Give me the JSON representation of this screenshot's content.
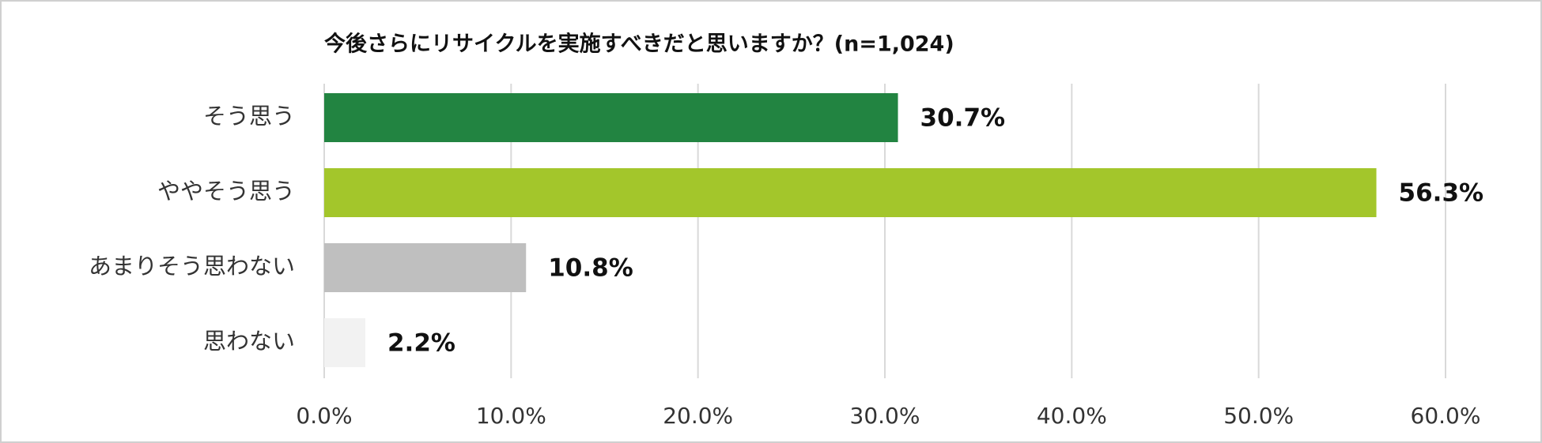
{
  "chart_data": {
    "type": "hbar",
    "title": "今後さらにリサイクルを実施すべきだと思いますか？(n=1,024)",
    "categories": [
      "そう思う",
      "ややそう思う",
      "あまりそう思わない",
      "思わない"
    ],
    "values": [
      30.7,
      56.3,
      10.8,
      2.2
    ],
    "value_labels": [
      "30.7%",
      "56.3%",
      "10.8%",
      "2.2%"
    ],
    "colors": [
      "#228441",
      "#a3c62b",
      "#bfbfbf",
      "#f2f2f2"
    ],
    "xlim": [
      0,
      60
    ],
    "xticks": [
      {
        "value": 0,
        "label": "0.0%"
      },
      {
        "value": 10,
        "label": "10.0%"
      },
      {
        "value": 20,
        "label": "20.0%"
      },
      {
        "value": 30,
        "label": "30.0%"
      },
      {
        "value": 40,
        "label": "40.0%"
      },
      {
        "value": 50,
        "label": "50.0%"
      },
      {
        "value": 60,
        "label": "60.0%"
      }
    ],
    "grid": true
  }
}
